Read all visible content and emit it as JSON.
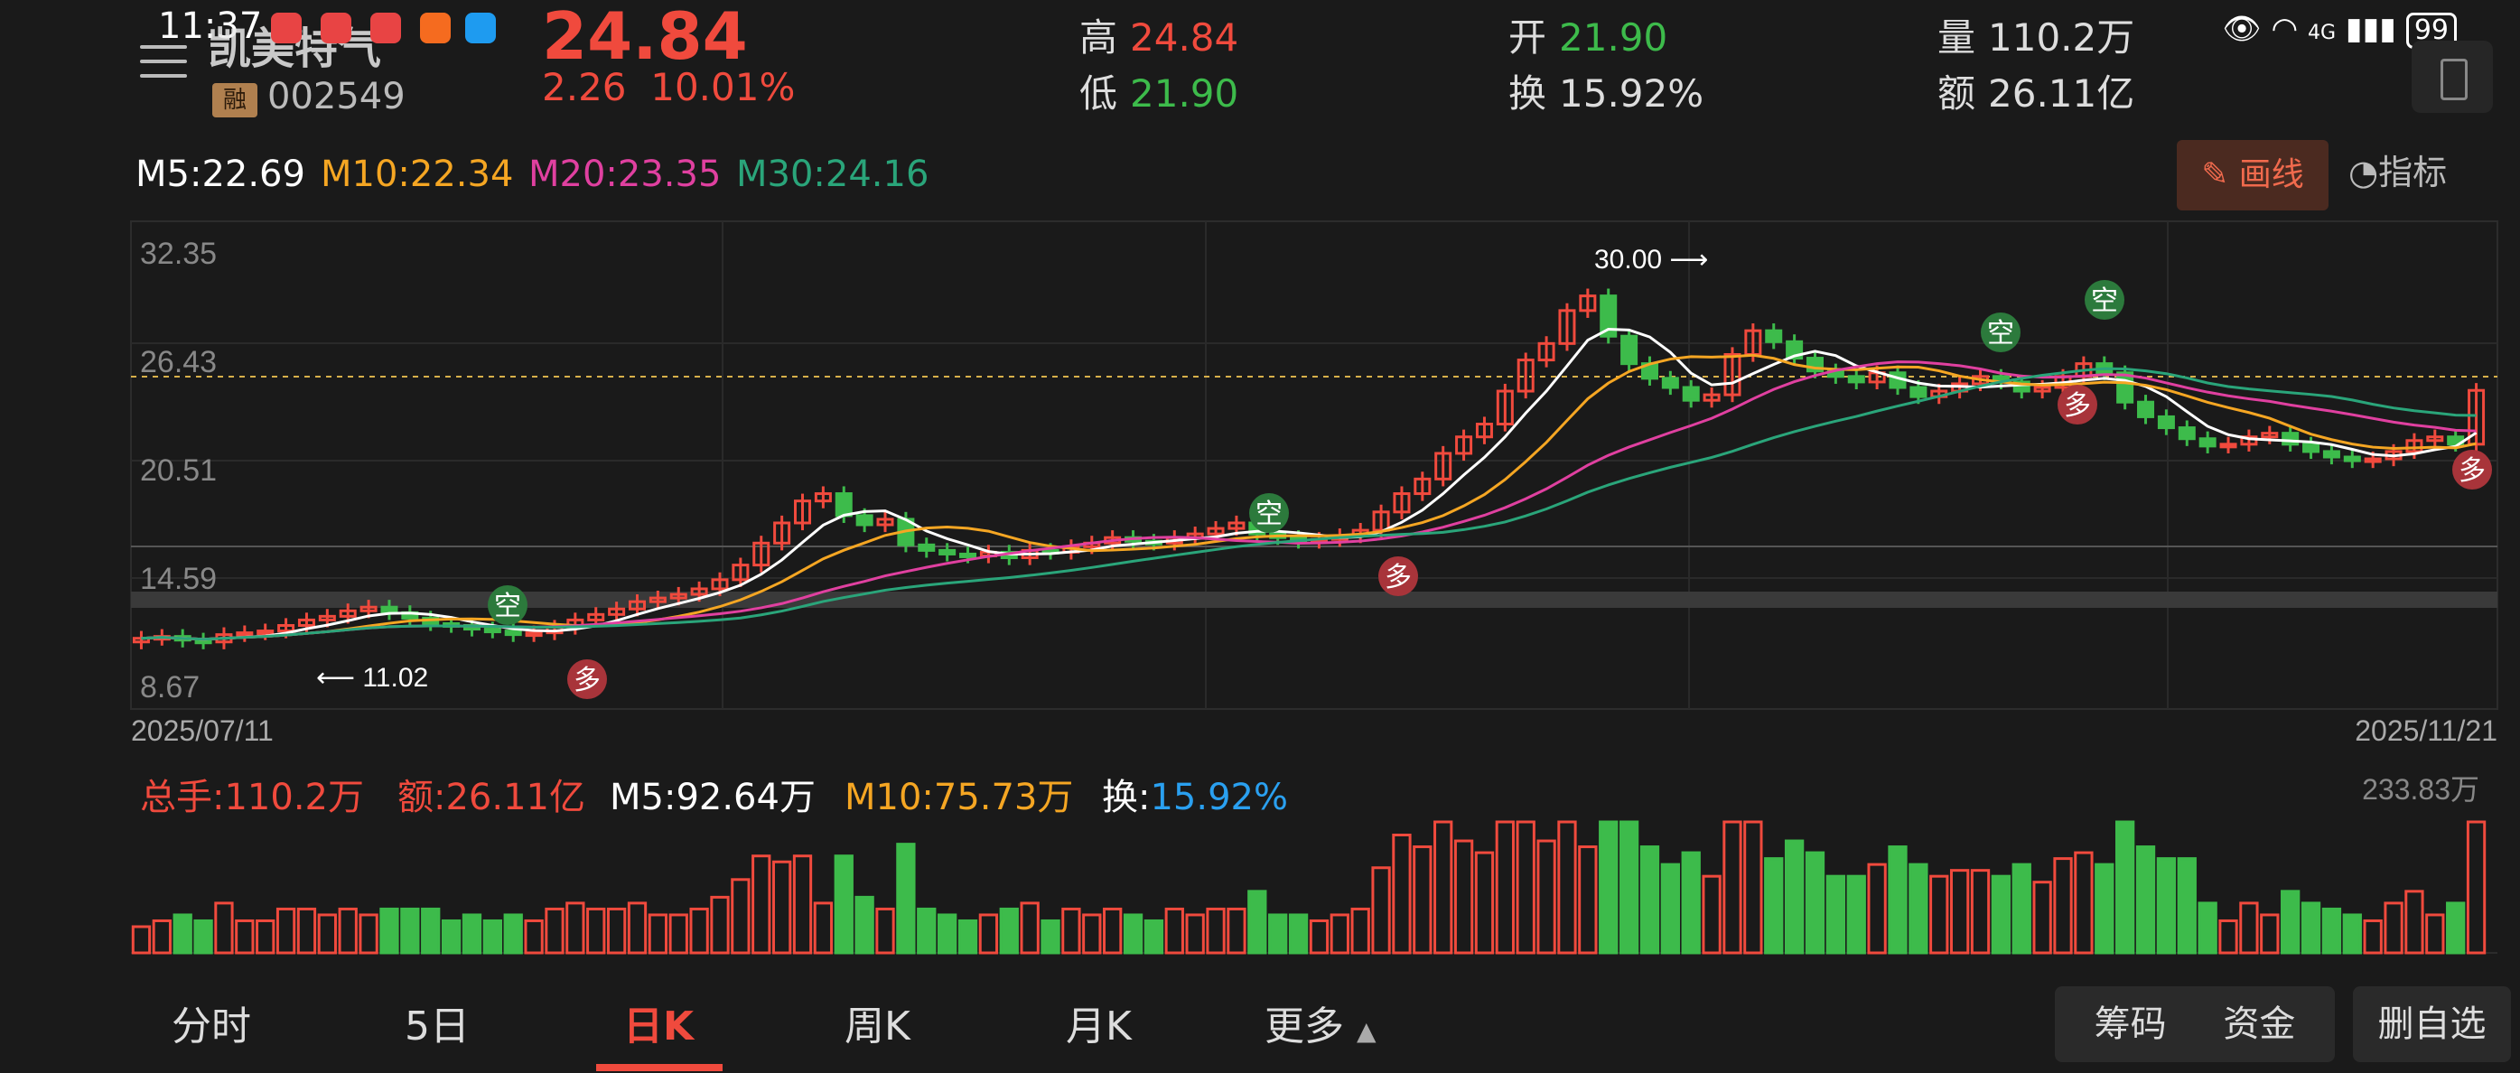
{
  "status": {
    "time": "11:37",
    "battery": "99",
    "network": "4G"
  },
  "stock": {
    "name": "凯美特气",
    "code": "002549",
    "margin_badge": "融",
    "price": "24.84",
    "change": "2.26",
    "change_pct": "10.01%"
  },
  "stats": {
    "high_label": "高",
    "high": "24.84",
    "low_label": "低",
    "low": "21.90",
    "open_label": "开",
    "open": "21.90",
    "turnover_label": "换",
    "turnover": "15.92%",
    "volume_label": "量",
    "volume": "110.2万",
    "amount_label": "额",
    "amount": "26.11亿"
  },
  "ma": {
    "m5": "M5:22.69",
    "m10": "M10:22.34",
    "m20": "M20:23.35",
    "m30": "M30:24.16"
  },
  "toolbar": {
    "draw_label": "画线",
    "indicator_label": "指标"
  },
  "chart_data": {
    "type": "candlestick",
    "y_ticks": [
      "32.35",
      "26.43",
      "20.51",
      "14.59",
      "8.67"
    ],
    "ylim": [
      8.67,
      32.35
    ],
    "x_start": "2025/07/11",
    "x_end": "2025/11/21",
    "annotations": {
      "low_label": "11.02",
      "high_label": "30.00"
    },
    "signals": [
      "空",
      "多"
    ],
    "volume_max": "233.83万"
  },
  "volume_panel": {
    "total": "总手:110.2万",
    "amount": "额:26.11亿",
    "m5": "M5:92.64万",
    "m10": "M10:75.73万",
    "turnover_prefix": "换:",
    "turnover": "15.92%"
  },
  "tabs": [
    "分时",
    "5日",
    "日K",
    "周K",
    "月K",
    "更多"
  ],
  "right_buttons": {
    "chips": "筹码",
    "funds": "资金",
    "remove": "删自选"
  },
  "colors": {
    "up": "#f04a3d",
    "down": "#3dbb4b",
    "ma5": "#ffffff",
    "ma10": "#f5a623",
    "ma20": "#e040a0",
    "ma30": "#2aa57a"
  }
}
